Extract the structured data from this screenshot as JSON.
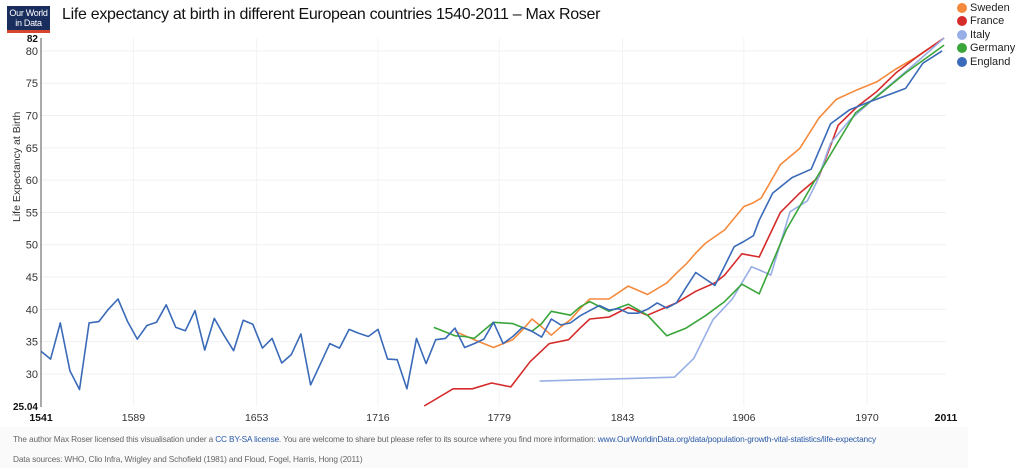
{
  "logo": {
    "line1": "Our World",
    "line2": "in Data"
  },
  "footer": {
    "license_prefix": "The author Max Roser licensed this visualisation under a ",
    "license_link": "CC BY-SA license",
    "license_suffix": ". You are welcome to share but please refer to its source where you find more information: ",
    "source_link": "www.OurWorldinData.org/data/population-growth-vital-statistics/life-expectancy",
    "data_sources": "Data sources: WHO, Clio Infra, Wrigley and Schofield (1981) and Floud, Fogel, Harris, Hong (2011)"
  },
  "chart_data": {
    "type": "line",
    "title": "Life expectancy at birth in different European countries 1540-2011 – Max Roser",
    "xlabel": "",
    "ylabel": "Life Expectancy at Birth",
    "xlim": [
      1541,
      2011
    ],
    "ylim": [
      25.04,
      82
    ],
    "x_ticks": [
      "1541",
      "1589",
      "1653",
      "1716",
      "1779",
      "1843",
      "1906",
      "1970",
      "2011"
    ],
    "y_ticks": [
      "25.04",
      "30",
      "35",
      "40",
      "45",
      "50",
      "55",
      "60",
      "65",
      "70",
      "75",
      "80",
      "82"
    ],
    "grid": true,
    "legend_position": "top-right",
    "series": [
      {
        "name": "Sweden",
        "color": "#f58a3c",
        "x": [
          1756,
          1766,
          1776,
          1781,
          1786,
          1791,
          1796,
          1801,
          1806,
          1811,
          1816,
          1821,
          1826,
          1836,
          1846,
          1856,
          1866,
          1871,
          1876,
          1881,
          1886,
          1896,
          1901,
          1906,
          1911,
          1915,
          1925,
          1935,
          1945,
          1954,
          1965,
          1975,
          1985,
          1996,
          2010
        ],
        "y": [
          36.6,
          35.3,
          34.1,
          34.7,
          35.3,
          36.8,
          38.5,
          37.3,
          36.0,
          37.3,
          38.4,
          40.1,
          41.6,
          41.6,
          43.6,
          42.3,
          44.1,
          45.6,
          47.0,
          48.7,
          50.2,
          52.3,
          54.1,
          55.9,
          56.5,
          57.2,
          62.4,
          64.9,
          69.6,
          72.5,
          74.0,
          75.2,
          77.2,
          79.1,
          82.0
        ]
      },
      {
        "name": "France",
        "color": "#d62b2b",
        "x": [
          1740,
          1755,
          1765,
          1775,
          1785,
          1795,
          1805,
          1815,
          1821,
          1826,
          1836,
          1846,
          1856,
          1871,
          1881,
          1891,
          1896,
          1905,
          1914,
          1925,
          1935,
          1945,
          1955,
          1965,
          1975,
          1985,
          1996,
          2010
        ],
        "y": [
          25.04,
          27.7,
          27.7,
          28.6,
          28.0,
          31.9,
          34.7,
          35.3,
          37.1,
          38.5,
          38.8,
          40.3,
          39.1,
          41.0,
          42.8,
          44.1,
          45.3,
          48.6,
          48.1,
          55.0,
          58.0,
          60.5,
          68.5,
          71.4,
          73.7,
          76.6,
          79.1,
          82.0
        ]
      },
      {
        "name": "Italy",
        "color": "#98aee6",
        "x": [
          1800,
          1870,
          1880,
          1890,
          1900,
          1910,
          1914,
          1920,
          1930,
          1939,
          1944,
          1951,
          1961,
          1975,
          1985,
          1996,
          2010
        ],
        "y": [
          28.9,
          29.5,
          32.4,
          38.4,
          41.6,
          46.6,
          46.1,
          45.3,
          55.1,
          56.8,
          59.8,
          65.7,
          69.3,
          73.0,
          75.5,
          78.3,
          82.0
        ]
      },
      {
        "name": "Germany",
        "color": "#3aa53a",
        "x": [
          1745,
          1756,
          1761,
          1766,
          1776,
          1786,
          1796,
          1801,
          1806,
          1816,
          1821,
          1826,
          1836,
          1846,
          1856,
          1866,
          1876,
          1886,
          1896,
          1905,
          1914,
          1928,
          1941,
          1964,
          1975,
          1990,
          2010
        ],
        "y": [
          37.2,
          35.9,
          35.8,
          35.5,
          38.0,
          37.8,
          36.6,
          37.8,
          39.7,
          39.1,
          40.4,
          41.2,
          39.7,
          40.8,
          39.1,
          35.9,
          37.1,
          39.0,
          41.2,
          43.9,
          42.4,
          52.3,
          59.0,
          70.4,
          72.9,
          76.6,
          80.9
        ]
      },
      {
        "name": "England",
        "color": "#3a6ab8",
        "x": [
          1541,
          1546,
          1551,
          1556,
          1561,
          1566,
          1571,
          1576,
          1581,
          1586,
          1591,
          1596,
          1601,
          1606,
          1611,
          1616,
          1621,
          1626,
          1631,
          1636,
          1641,
          1646,
          1651,
          1656,
          1661,
          1666,
          1671,
          1676,
          1681,
          1686,
          1691,
          1696,
          1701,
          1706,
          1711,
          1716,
          1721,
          1726,
          1731,
          1736,
          1741,
          1746,
          1751,
          1756,
          1761,
          1766,
          1771,
          1776,
          1781,
          1786,
          1791,
          1796,
          1801,
          1806,
          1811,
          1816,
          1821,
          1826,
          1831,
          1836,
          1841,
          1846,
          1851,
          1856,
          1861,
          1866,
          1871,
          1876,
          1881,
          1886,
          1891,
          1896,
          1901,
          1906,
          1911,
          1914,
          1921,
          1931,
          1941,
          1951,
          1961,
          1971,
          1981,
          1990,
          1999,
          2009
        ],
        "y": [
          33.5,
          32.3,
          37.9,
          30.5,
          27.6,
          37.9,
          38.1,
          40.0,
          41.6,
          38.1,
          35.4,
          37.5,
          38.0,
          40.7,
          37.2,
          36.7,
          39.8,
          33.7,
          38.6,
          36.0,
          33.6,
          38.3,
          37.7,
          34.0,
          35.5,
          31.7,
          33.0,
          36.2,
          28.3,
          31.5,
          34.7,
          34.0,
          36.9,
          36.3,
          35.8,
          36.9,
          32.3,
          32.2,
          27.7,
          35.5,
          31.6,
          35.3,
          35.5,
          37.1,
          34.1,
          34.7,
          35.4,
          38.0,
          34.7,
          35.8,
          37.2,
          36.6,
          35.7,
          38.5,
          37.6,
          37.9,
          39.0,
          39.8,
          40.6,
          39.9,
          40.1,
          39.4,
          39.4,
          40.0,
          41.0,
          40.2,
          41.0,
          43.4,
          45.7,
          44.7,
          43.7,
          46.7,
          49.7,
          50.5,
          51.4,
          53.8,
          58.0,
          60.4,
          61.7,
          68.7,
          70.9,
          72.1,
          73.2,
          74.2,
          78.1,
          80.0
        ]
      }
    ]
  }
}
